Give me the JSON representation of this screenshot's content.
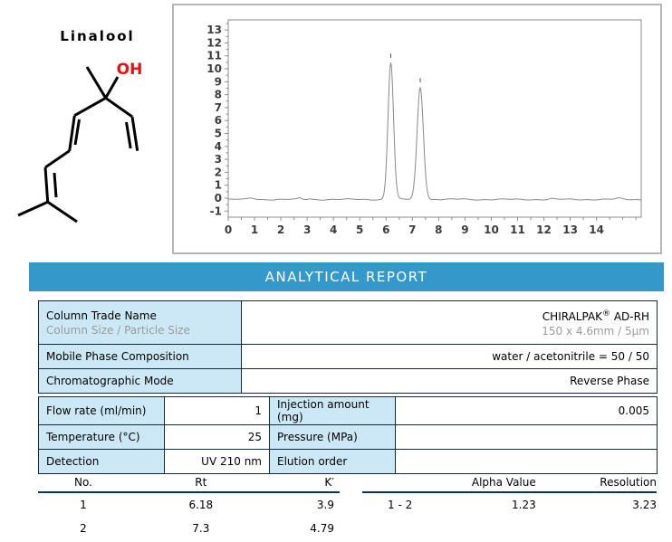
{
  "molecule": {
    "title": "Linalool",
    "hydroxyl_label": "OH"
  },
  "banner": {
    "title": "ANALYTICAL REPORT"
  },
  "chart_data": {
    "type": "line",
    "title": "",
    "xlabel": "",
    "ylabel": "",
    "x_range": [
      0,
      15.7
    ],
    "y_range": [
      -1.47,
      13.78
    ],
    "x_ticks_major": [
      0,
      1,
      2,
      3,
      4,
      5,
      6,
      7,
      8,
      9,
      10,
      11,
      12,
      13,
      14
    ],
    "x_minor_step": 0.5,
    "y_ticks_major": [
      -1,
      0,
      1,
      2,
      3,
      4,
      5,
      6,
      7,
      8,
      9,
      10,
      11,
      12,
      13
    ],
    "y_minor_step": 0.5,
    "grid": false,
    "baseline_level": -0.1,
    "peaks": [
      {
        "rt": 6.18,
        "height": 10.55,
        "sigma": 0.105,
        "apex_marker": true
      },
      {
        "rt": 7.3,
        "height": 8.65,
        "sigma": 0.12,
        "apex_marker": true
      }
    ]
  },
  "column_table": {
    "rows": [
      {
        "label": "Column Trade Name",
        "sublabel": "Column Size / Particle Size",
        "value_brand": "CHIRALPAK",
        "value_reg": "®",
        "value_suffix": " AD-RH",
        "subvalue": "150 x 4.6mm / 5µm"
      },
      {
        "label": "Mobile Phase Composition",
        "value": "water / acetonitrile = 50 / 50"
      },
      {
        "label": "Chromatographic Mode",
        "value": "Reverse Phase"
      }
    ]
  },
  "conditions_table": {
    "rows": [
      {
        "label1": "Flow rate (ml/min)",
        "value1": "1",
        "label2": "Injection amount (mg)",
        "value2": "0.005"
      },
      {
        "label1": "Temperature (°C)",
        "value1": "25",
        "label2": "Pressure (MPa)",
        "value2": ""
      },
      {
        "label1": "Detection",
        "value1": "UV 210 nm",
        "label2": "Elution order",
        "value2": ""
      }
    ]
  },
  "peaks_table": {
    "headers": [
      "No.",
      "Rt",
      "K′"
    ],
    "rows": [
      [
        "1",
        "6.18",
        "3.9"
      ],
      [
        "2",
        "7.3",
        "4.79"
      ]
    ]
  },
  "separation_table": {
    "headers": [
      "",
      "Alpha Value",
      "Resolution"
    ],
    "rows": [
      [
        "1 - 2",
        "1.23",
        "3.23"
      ]
    ]
  },
  "colors": {
    "banner_bg": "#3598cb",
    "banner_text": "#ffffff",
    "cell_bg": "#cce8f7",
    "table_border": "#15293d",
    "rule_navy": "#0d3557",
    "subtext_gray": "#9b9b9b",
    "hydroxyl_red": "#e81010",
    "chart_line": "#8a8a8a",
    "axis_text": "#3c3c3c",
    "panel_border": "#b6b6b6",
    "plot_border": "#8c8c8c",
    "bond_color": "#000000"
  }
}
